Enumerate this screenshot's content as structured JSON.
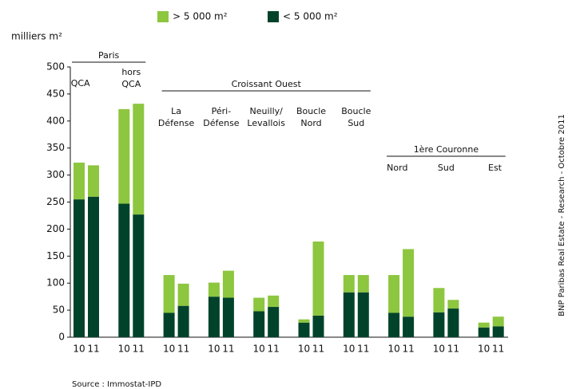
{
  "chart_data": {
    "type": "bar",
    "stacked": true,
    "y_label": "milliers m²",
    "source": "Source : Immostat-IPD",
    "side_note": "BNP Paribas Real Estate - Research - Octobre 2011",
    "categories": [
      [
        "QCA"
      ],
      [
        "hors",
        "QCA"
      ],
      [
        "La",
        "Défense"
      ],
      [
        "Péri-",
        "Défense"
      ],
      [
        "Neuilly/",
        "Levallois"
      ],
      [
        "Boucle",
        "Nord"
      ],
      [
        "Boucle",
        "Sud"
      ],
      [
        "Nord"
      ],
      [
        "Sud"
      ],
      [
        "Est"
      ]
    ],
    "regions": [
      "Paris",
      "Paris",
      "Croissant Ouest",
      "Croissant Ouest",
      "Croissant Ouest",
      "Croissant Ouest",
      "Croissant Ouest",
      "1ère Couronne",
      "1ère Couronne",
      "1ère Couronne"
    ],
    "periods": [
      "10",
      "11"
    ],
    "series": [
      {
        "name": "> 5 000 m²",
        "color": "#8dc63f",
        "values": [
          [
            68,
            58
          ],
          [
            175,
            205
          ],
          [
            70,
            41
          ],
          [
            26,
            50
          ],
          [
            25,
            21
          ],
          [
            6,
            137
          ],
          [
            32,
            32
          ],
          [
            70,
            125
          ],
          [
            45,
            16
          ],
          [
            9,
            18
          ]
        ]
      },
      {
        "name": "< 5 000 m²",
        "color": "#00432a",
        "values": [
          [
            255,
            260
          ],
          [
            247,
            227
          ],
          [
            45,
            58
          ],
          [
            75,
            73
          ],
          [
            48,
            56
          ],
          [
            27,
            40
          ],
          [
            83,
            83
          ],
          [
            45,
            38
          ],
          [
            46,
            53
          ],
          [
            18,
            20
          ]
        ]
      }
    ],
    "ylim": [
      0,
      500
    ],
    "yticks": [
      0,
      50,
      100,
      150,
      200,
      250,
      300,
      350,
      400,
      450,
      500
    ],
    "grid": false
  }
}
